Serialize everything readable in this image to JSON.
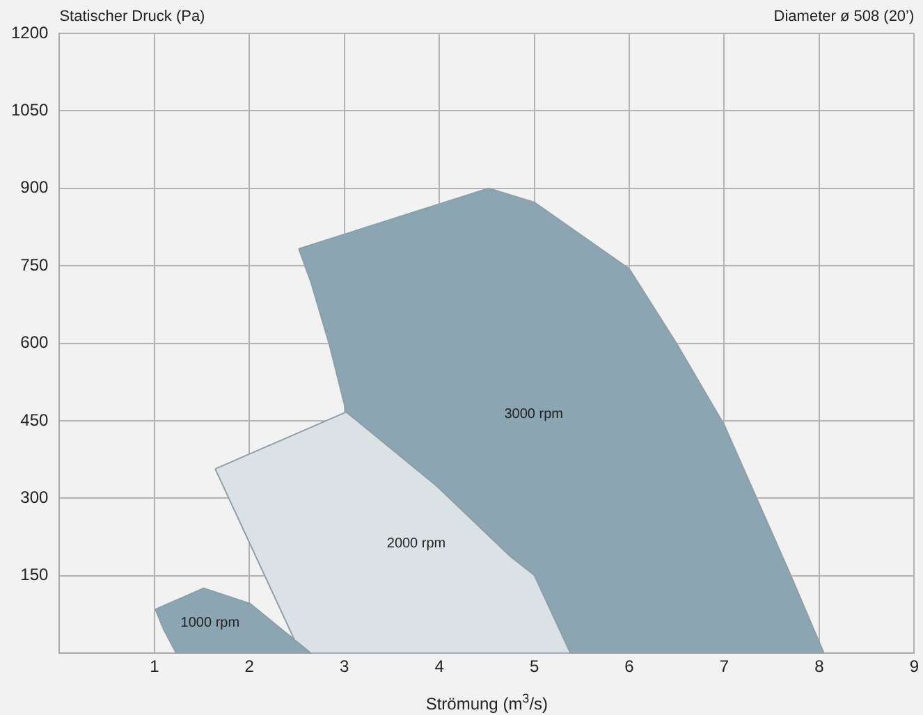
{
  "chart_data": {
    "type": "area",
    "title": "Diameter ø 508 (20’)",
    "ylabel": "Statischer Druck (Pa)",
    "xlabel": "Strömung (m$^{3}$/s)",
    "xlim": [
      0,
      9
    ],
    "xticks": [
      1,
      2,
      3,
      4,
      5,
      6,
      7,
      8,
      9
    ],
    "ylim": [
      0,
      1200
    ],
    "yticks": [
      150,
      300,
      450,
      600,
      750,
      900,
      1050,
      1200
    ],
    "grid": true,
    "legend": false,
    "marker": "none",
    "line_style": "solid",
    "series": [
      {
        "name": "1000 rpm",
        "color": "#8ba5b3",
        "x": [
          1.01,
          1.52,
          2.01,
          2.65,
          1.23,
          1.1
        ],
        "values": [
          85,
          126,
          96,
          0,
          0,
          45
        ]
      },
      {
        "name": "2000 rpm",
        "color": "#dbe2e6",
        "x": [
          1.64,
          3.02,
          3.97,
          4.75,
          5.0,
          5.38,
          2.54
        ],
        "values": [
          357,
          467,
          324,
          187,
          151,
          0,
          0
        ]
      },
      {
        "name": "3000 rpm",
        "color": "#8ba5b3",
        "x": [
          2.52,
          4.52,
          5.0,
          6.0,
          6.5,
          7.0,
          7.7,
          8.05,
          5.38,
          5.0,
          4.75,
          3.97,
          3.02,
          2.84,
          2.65
        ],
        "values": [
          783,
          900,
          873,
          744,
          599,
          442,
          151,
          0,
          0,
          151,
          187,
          324,
          467,
          599,
          717
        ]
      }
    ]
  }
}
